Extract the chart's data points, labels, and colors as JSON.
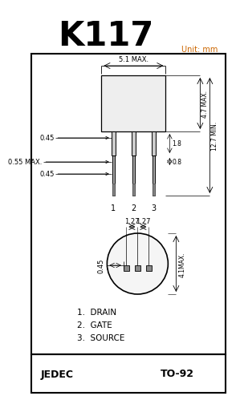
{
  "title": "K117",
  "title_color": "#000000",
  "unit_text": "Unit: mm",
  "unit_color": "#cc6600",
  "bg_color": "#ffffff",
  "border_color": "#000000",
  "footer_left": "JEDEC",
  "footer_right": "TO-92",
  "labels": [
    "1.  DRAIN",
    "2.  GATE",
    "3.  SOURCE"
  ],
  "dims_top": {
    "width_label": "5.1 MAX.",
    "height_right_label": "4.7 MAX.",
    "height_total_label": "12.7 MIN.",
    "pin_width1": "0.45",
    "pin_width2": "0.55 MAX.",
    "pin_width3": "0.45",
    "dim_18": "1.8",
    "dim_08": "0.8"
  },
  "dims_bottom": {
    "spacing_left": "1.27",
    "spacing_right": "1.27",
    "pin_offset": "0.45",
    "diameter": "4.1MAX."
  }
}
